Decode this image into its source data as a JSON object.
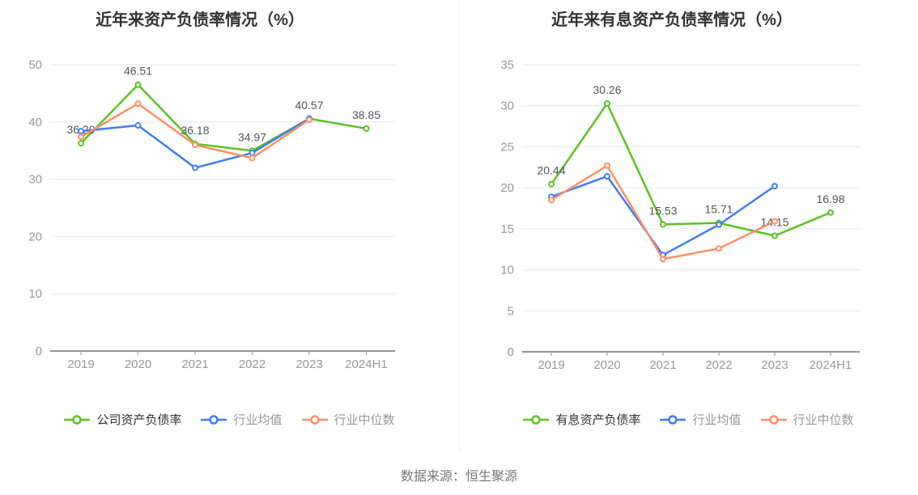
{
  "source": "数据来源：恒生聚源",
  "colors": {
    "company_green": "#5CC222",
    "industry_mean_blue": "#3E7EF3",
    "industry_median_orange": "#FF8F63",
    "grid_line": "#E4E9F4",
    "axis_line": "#6E7079",
    "axis_text": "#999999",
    "data_label": "#555555",
    "title_text": "#333333"
  },
  "chart_data": [
    {
      "type": "line",
      "title": "近年来资产负债率情况（%）",
      "categories": [
        "2019",
        "2020",
        "2021",
        "2022",
        "2023",
        "2024H1"
      ],
      "ylim": [
        0,
        50
      ],
      "ytick_step": 10,
      "grid": true,
      "legend_position": "bottom",
      "series": [
        {
          "name": "公司资产负债率",
          "color": "#5CC222",
          "show_labels": true,
          "values": [
            36.29,
            46.51,
            36.18,
            34.97,
            40.57,
            38.85
          ]
        },
        {
          "name": "行业均值",
          "color": "#3E7EF3",
          "show_labels": false,
          "values": [
            38.4,
            39.4,
            32.0,
            34.6,
            40.6,
            null
          ]
        },
        {
          "name": "行业中位数",
          "color": "#FF8F63",
          "show_labels": false,
          "values": [
            37.4,
            43.2,
            36.0,
            33.7,
            40.4,
            null
          ]
        }
      ]
    },
    {
      "type": "line",
      "title": "近年来有息资产负债率情况（%）",
      "categories": [
        "2019",
        "2020",
        "2021",
        "2022",
        "2023",
        "2024H1"
      ],
      "ylim": [
        0,
        35
      ],
      "ytick_step": 5,
      "grid": true,
      "legend_position": "bottom",
      "series": [
        {
          "name": "有息资产负债率",
          "color": "#5CC222",
          "show_labels": true,
          "values": [
            20.44,
            30.26,
            15.53,
            15.71,
            14.15,
            16.98
          ]
        },
        {
          "name": "行业均值",
          "color": "#3E7EF3",
          "show_labels": false,
          "values": [
            18.9,
            21.4,
            11.8,
            15.5,
            20.2,
            null
          ]
        },
        {
          "name": "行业中位数",
          "color": "#FF8F63",
          "show_labels": false,
          "values": [
            18.5,
            22.7,
            11.3,
            12.6,
            15.9,
            null
          ]
        }
      ]
    }
  ]
}
